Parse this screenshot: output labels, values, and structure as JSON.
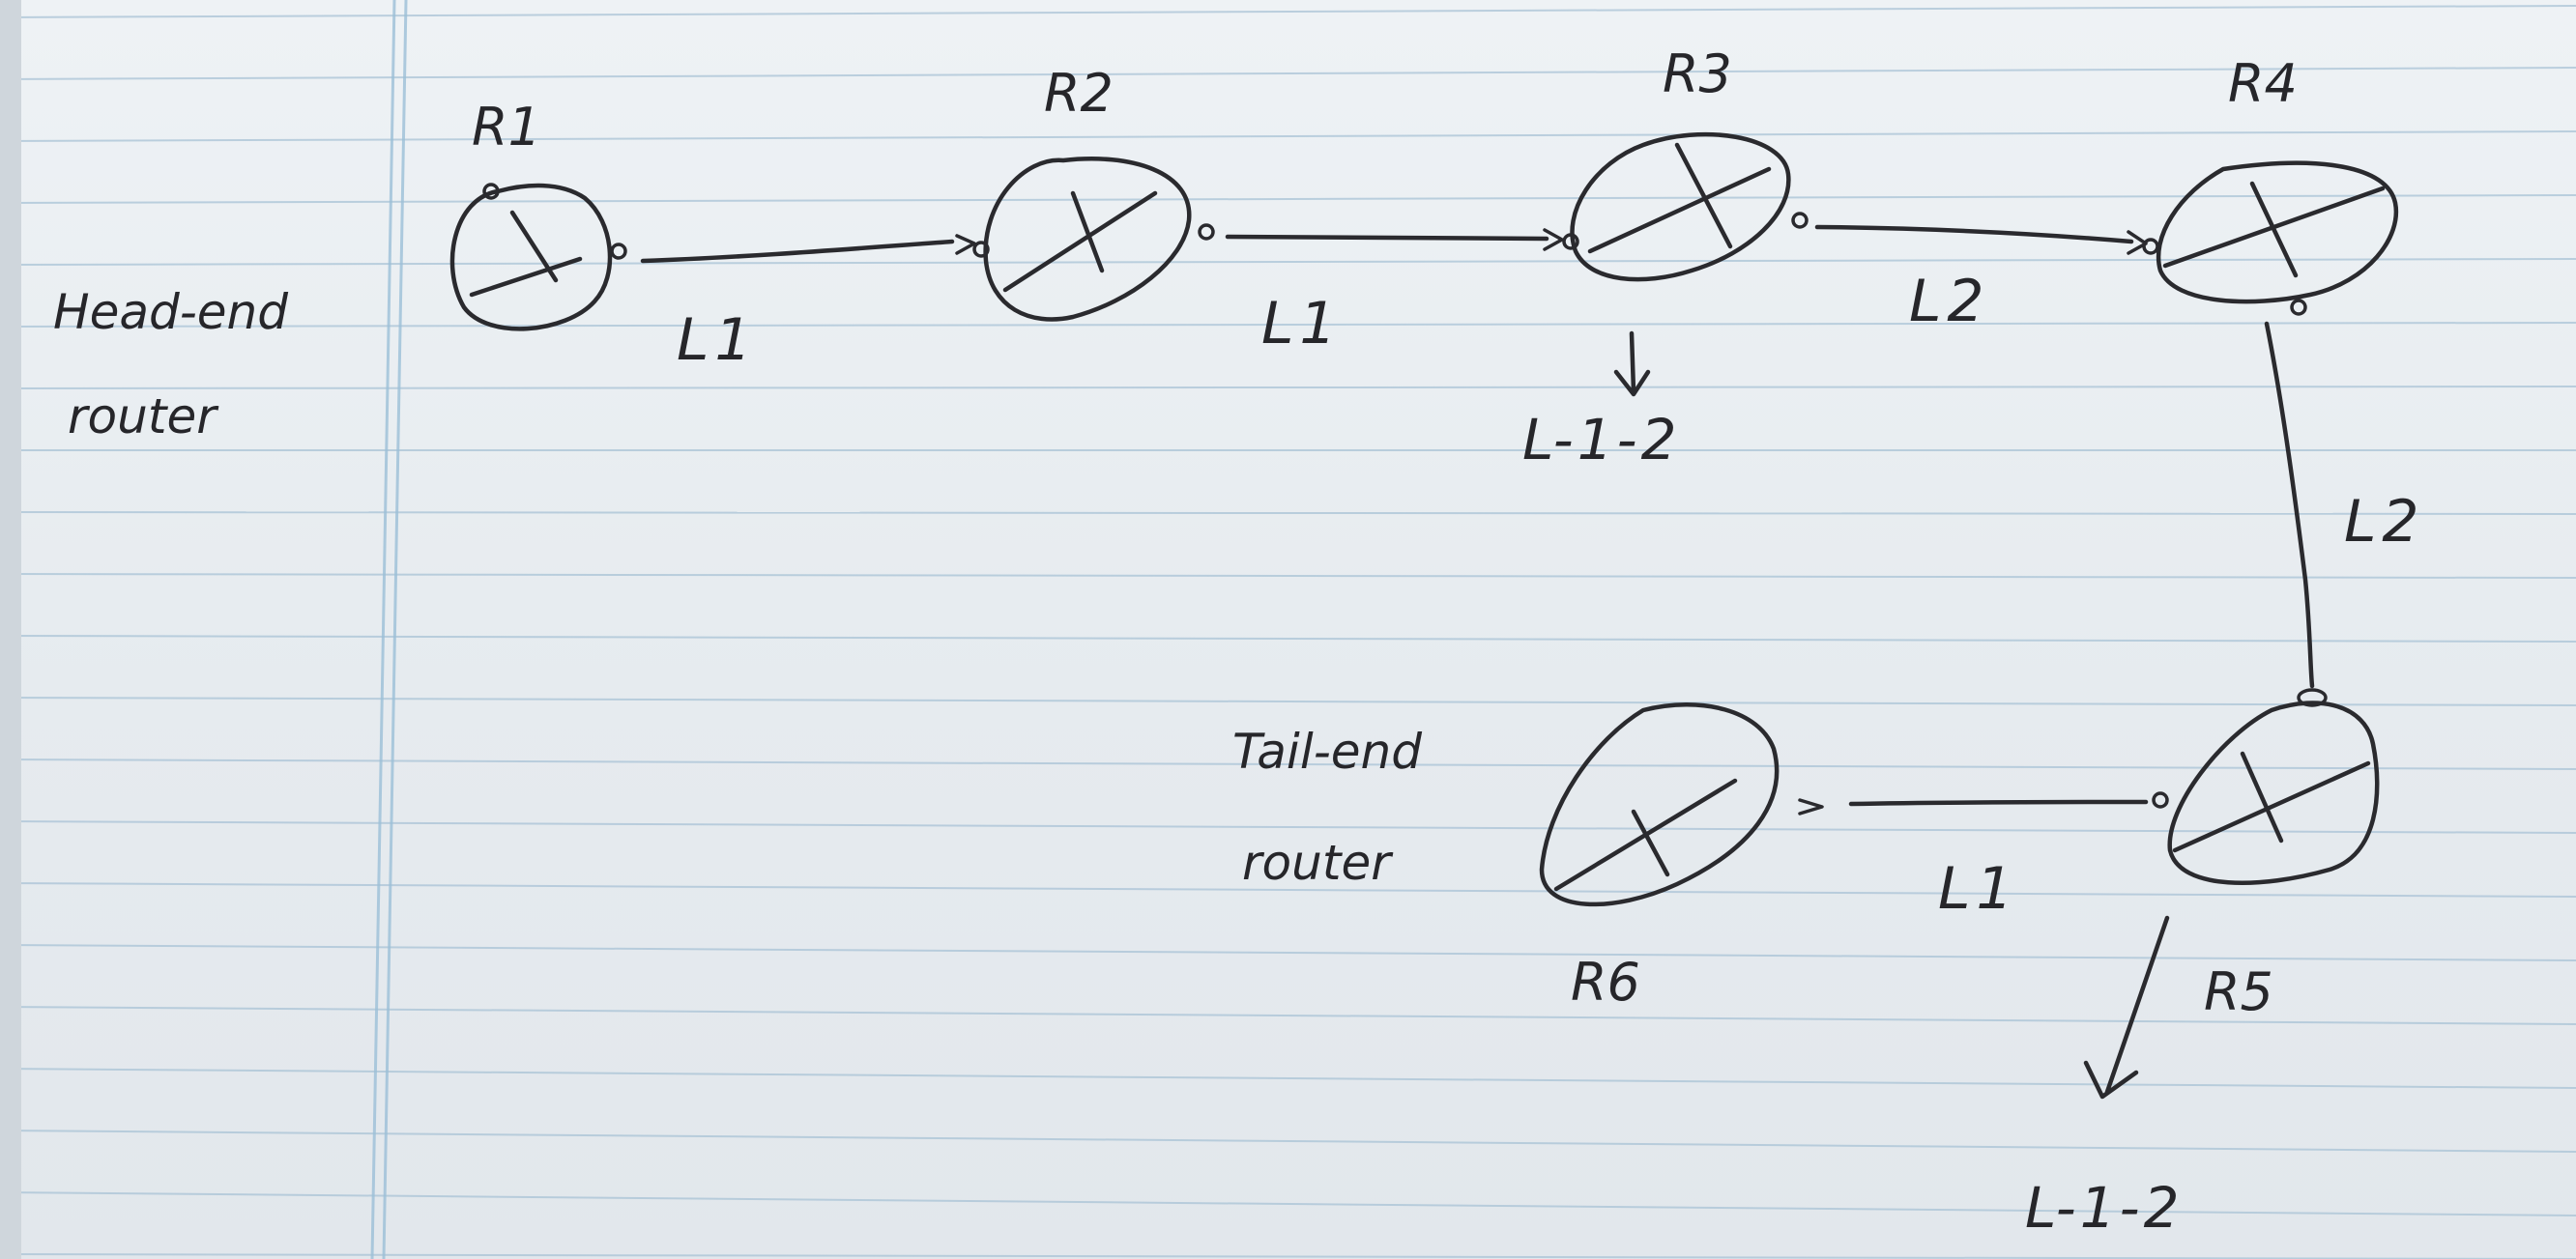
{
  "routers": [
    {
      "id": "r1",
      "label": "R1"
    },
    {
      "id": "r2",
      "label": "R2"
    },
    {
      "id": "r3",
      "label": "R3"
    },
    {
      "id": "r4",
      "label": "R4"
    },
    {
      "id": "r5",
      "label": "R5"
    },
    {
      "id": "r6",
      "label": "R6"
    }
  ],
  "links": [
    {
      "id": "r1-r2",
      "label": "L1"
    },
    {
      "id": "r2-r3",
      "label": "L1"
    },
    {
      "id": "r3-r4",
      "label": "L2"
    },
    {
      "id": "r4-r5",
      "label": "L2"
    },
    {
      "id": "r5-r6",
      "label": "L1"
    }
  ],
  "annotations": {
    "head_end_line1": "Head-end",
    "head_end_line2": "router",
    "tail_end_line1": "Tail-end",
    "tail_end_line2": "router",
    "r3_tag": "L-1-2",
    "r5_tag": "L-1-2"
  },
  "colors": {
    "ink": "#2a2a2e",
    "paper": "#e9eef2",
    "rule_line": "#a9c3d6",
    "margin_line": "#9cc0d8"
  }
}
